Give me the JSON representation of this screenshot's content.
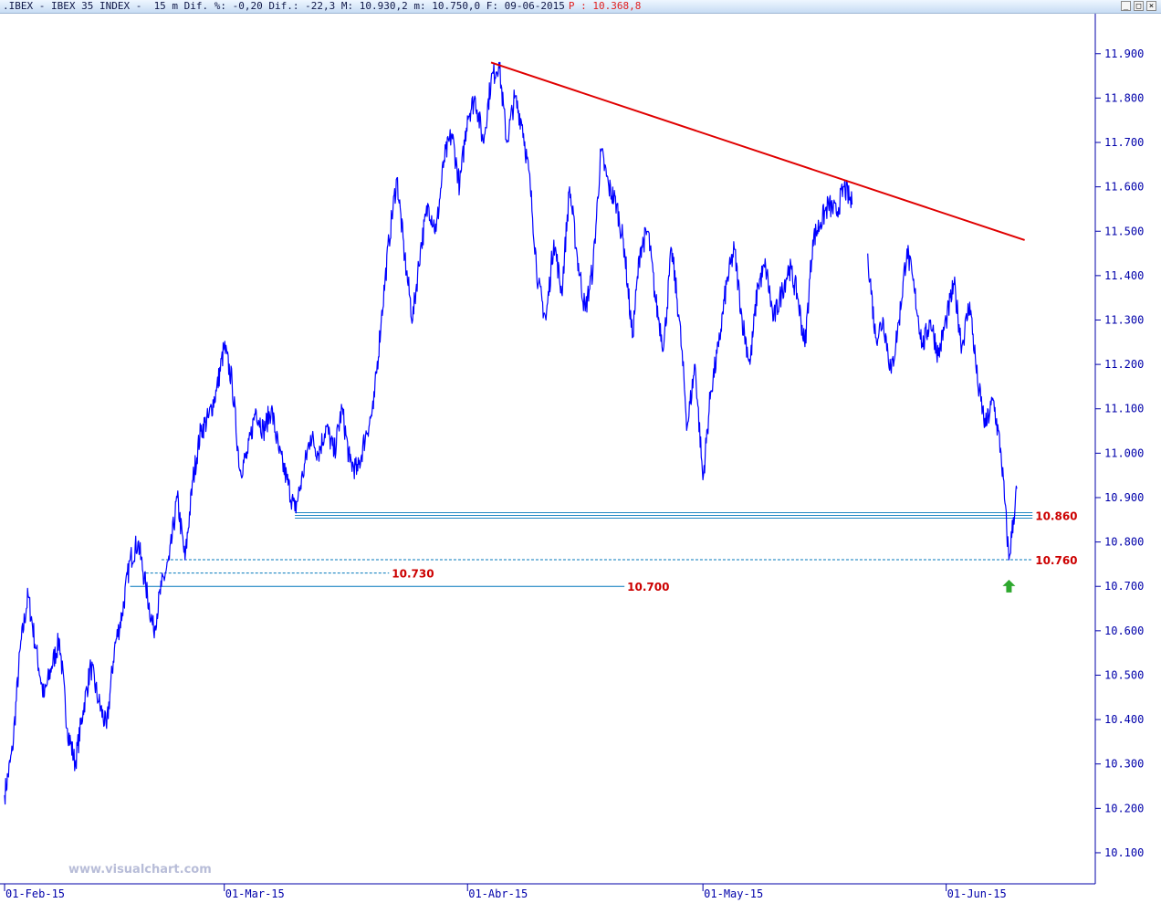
{
  "title": {
    "text": ".IBEX - IBEX 35 INDEX -  15 m Dif. %: -0,20 Dif.: -22,3 M: 10.930,2 m: 10.750,0 F: 09-06-2015",
    "price": "P : 10.368,8"
  },
  "watermark": "www.visualchart.com",
  "window_buttons": {
    "minimize": "_",
    "maximize": "□",
    "close": "×"
  },
  "colors": {
    "price_line": "#0000ff",
    "trend_line": "#e00000",
    "level_line": "#0077bb",
    "level_label": "#cc0000",
    "axis": "#0000aa",
    "arrow": "#2ea82e"
  },
  "chart_data": {
    "type": "line",
    "title": "",
    "xlabel": "",
    "ylabel": "",
    "ylim": [
      10030,
      11990
    ],
    "y_ticks": [
      11900,
      11800,
      11700,
      11600,
      11500,
      11400,
      11300,
      11200,
      11100,
      11000,
      10900,
      10800,
      10700,
      10600,
      10500,
      10400,
      10300,
      10200,
      10100
    ],
    "y_tick_labels": [
      "11.900",
      "11.800",
      "11.700",
      "11.600",
      "11.500",
      "11.400",
      "11.300",
      "11.200",
      "11.100",
      "11.000",
      "10.900",
      "10.800",
      "10.700",
      "10.600",
      "10.500",
      "10.400",
      "10.300",
      "10.200",
      "10.100"
    ],
    "x_range": [
      "2015-02-01",
      "2015-06-20"
    ],
    "x_ticks": [
      "2015-02-01",
      "2015-03-01",
      "2015-04-01",
      "2015-05-01",
      "2015-06-01"
    ],
    "x_tick_labels": [
      "01-Feb-15",
      "01-Mar-15",
      "01-Abr-15",
      "01-May-15",
      "01-Jun-15"
    ],
    "grid": false,
    "series": [
      {
        "name": "",
        "points": [
          [
            "2015-02-01",
            10230
          ],
          [
            "2015-02-02",
            10330
          ],
          [
            "2015-02-03",
            10560
          ],
          [
            "2015-02-04",
            10680
          ],
          [
            "2015-02-05",
            10560
          ],
          [
            "2015-02-06",
            10450
          ],
          [
            "2015-02-07",
            10520
          ],
          [
            "2015-02-08",
            10580
          ],
          [
            "2015-02-09",
            10380
          ],
          [
            "2015-02-10",
            10300
          ],
          [
            "2015-02-11",
            10420
          ],
          [
            "2015-02-12",
            10520
          ],
          [
            "2015-02-13",
            10440
          ],
          [
            "2015-02-14",
            10380
          ],
          [
            "2015-02-15",
            10560
          ],
          [
            "2015-02-16",
            10640
          ],
          [
            "2015-02-17",
            10760
          ],
          [
            "2015-02-18",
            10800
          ],
          [
            "2015-02-19",
            10700
          ],
          [
            "2015-02-20",
            10600
          ],
          [
            "2015-02-21",
            10700
          ],
          [
            "2015-02-22",
            10760
          ],
          [
            "2015-02-23",
            10900
          ],
          [
            "2015-02-24",
            10760
          ],
          [
            "2015-02-25",
            10940
          ],
          [
            "2015-02-26",
            11050
          ],
          [
            "2015-02-27",
            11080
          ],
          [
            "2015-02-28",
            11140
          ],
          [
            "2015-03-01",
            11240
          ],
          [
            "2015-03-02",
            11160
          ],
          [
            "2015-03-03",
            10960
          ],
          [
            "2015-03-04",
            11000
          ],
          [
            "2015-03-05",
            11100
          ],
          [
            "2015-03-06",
            11050
          ],
          [
            "2015-03-07",
            11100
          ],
          [
            "2015-03-08",
            11000
          ],
          [
            "2015-03-09",
            10940
          ],
          [
            "2015-03-10",
            10870
          ],
          [
            "2015-03-11",
            10950
          ],
          [
            "2015-03-12",
            11040
          ],
          [
            "2015-03-13",
            11000
          ],
          [
            "2015-03-14",
            11060
          ],
          [
            "2015-03-15",
            11000
          ],
          [
            "2015-03-16",
            11100
          ],
          [
            "2015-03-17",
            10980
          ],
          [
            "2015-03-18",
            10960
          ],
          [
            "2015-03-19",
            11040
          ],
          [
            "2015-03-20",
            11100
          ],
          [
            "2015-03-21",
            11300
          ],
          [
            "2015-03-22",
            11480
          ],
          [
            "2015-03-23",
            11620
          ],
          [
            "2015-03-24",
            11440
          ],
          [
            "2015-03-25",
            11300
          ],
          [
            "2015-03-26",
            11460
          ],
          [
            "2015-03-27",
            11560
          ],
          [
            "2015-03-28",
            11500
          ],
          [
            "2015-03-29",
            11660
          ],
          [
            "2015-03-30",
            11720
          ],
          [
            "2015-03-31",
            11600
          ],
          [
            "2015-04-01",
            11760
          ],
          [
            "2015-04-02",
            11800
          ],
          [
            "2015-04-03",
            11700
          ],
          [
            "2015-04-04",
            11840
          ],
          [
            "2015-04-05",
            11880
          ],
          [
            "2015-04-06",
            11700
          ],
          [
            "2015-04-07",
            11800
          ],
          [
            "2015-04-08",
            11740
          ],
          [
            "2015-04-09",
            11600
          ],
          [
            "2015-04-10",
            11380
          ],
          [
            "2015-04-11",
            11300
          ],
          [
            "2015-04-12",
            11480
          ],
          [
            "2015-04-13",
            11360
          ],
          [
            "2015-04-14",
            11600
          ],
          [
            "2015-04-15",
            11440
          ],
          [
            "2015-04-16",
            11320
          ],
          [
            "2015-04-17",
            11420
          ],
          [
            "2015-04-18",
            11680
          ],
          [
            "2015-04-19",
            11600
          ],
          [
            "2015-04-20",
            11560
          ],
          [
            "2015-04-21",
            11460
          ],
          [
            "2015-04-22",
            11260
          ],
          [
            "2015-04-23",
            11460
          ],
          [
            "2015-04-24",
            11500
          ],
          [
            "2015-04-25",
            11340
          ],
          [
            "2015-04-26",
            11240
          ],
          [
            "2015-04-27",
            11460
          ],
          [
            "2015-04-28",
            11300
          ],
          [
            "2015-04-29",
            11060
          ],
          [
            "2015-04-30",
            11200
          ],
          [
            "2015-05-01",
            10940
          ],
          [
            "2015-05-02",
            11140
          ],
          [
            "2015-05-03",
            11240
          ],
          [
            "2015-05-04",
            11380
          ],
          [
            "2015-05-05",
            11460
          ],
          [
            "2015-05-06",
            11300
          ],
          [
            "2015-05-07",
            11200
          ],
          [
            "2015-05-08",
            11380
          ],
          [
            "2015-05-09",
            11420
          ],
          [
            "2015-05-10",
            11300
          ],
          [
            "2015-05-11",
            11360
          ],
          [
            "2015-05-12",
            11420
          ],
          [
            "2015-05-13",
            11360
          ],
          [
            "2015-05-14",
            11240
          ],
          [
            "2015-05-15",
            11480
          ],
          [
            "2015-05-16",
            11520
          ],
          [
            "2015-05-17",
            11560
          ],
          [
            "2015-05-18",
            11540
          ],
          [
            "2015-05-19",
            11600
          ],
          [
            "2015-05-20",
            11560
          ]
        ]
      },
      {
        "name": "",
        "points": [
          [
            "2015-05-22",
            11450
          ],
          [
            "2015-05-23",
            11260
          ],
          [
            "2015-05-24",
            11300
          ],
          [
            "2015-05-25",
            11180
          ],
          [
            "2015-05-26",
            11300
          ],
          [
            "2015-05-27",
            11460
          ],
          [
            "2015-05-28",
            11360
          ],
          [
            "2015-05-29",
            11240
          ],
          [
            "2015-05-30",
            11300
          ],
          [
            "2015-05-31",
            11220
          ],
          [
            "2015-06-01",
            11300
          ],
          [
            "2015-06-02",
            11380
          ],
          [
            "2015-06-03",
            11240
          ],
          [
            "2015-06-04",
            11340
          ],
          [
            "2015-06-05",
            11160
          ],
          [
            "2015-06-06",
            11060
          ],
          [
            "2015-06-07",
            11120
          ],
          [
            "2015-06-08",
            11000
          ],
          [
            "2015-06-09",
            10760
          ],
          [
            "2015-06-10",
            10920
          ]
        ]
      }
    ],
    "trend_line": {
      "start": [
        "2015-04-04",
        11880
      ],
      "end": [
        "2015-06-11",
        11480
      ]
    },
    "levels": [
      {
        "value": 10860,
        "label": "10.860",
        "from": "2015-03-10",
        "to": "2015-06-12",
        "style": "double"
      },
      {
        "value": 10760,
        "label": "10.760",
        "from": "2015-02-21",
        "to": "2015-06-12",
        "style": "dashed"
      },
      {
        "value": 10730,
        "label": "10.730",
        "from": "2015-02-19",
        "to": "2015-03-22",
        "style": "dashed"
      },
      {
        "value": 10700,
        "label": "10.700",
        "from": "2015-02-17",
        "to": "2015-04-21",
        "style": "solid"
      }
    ],
    "marker": {
      "type": "up-arrow",
      "x": "2015-06-09",
      "y": 10715
    }
  }
}
